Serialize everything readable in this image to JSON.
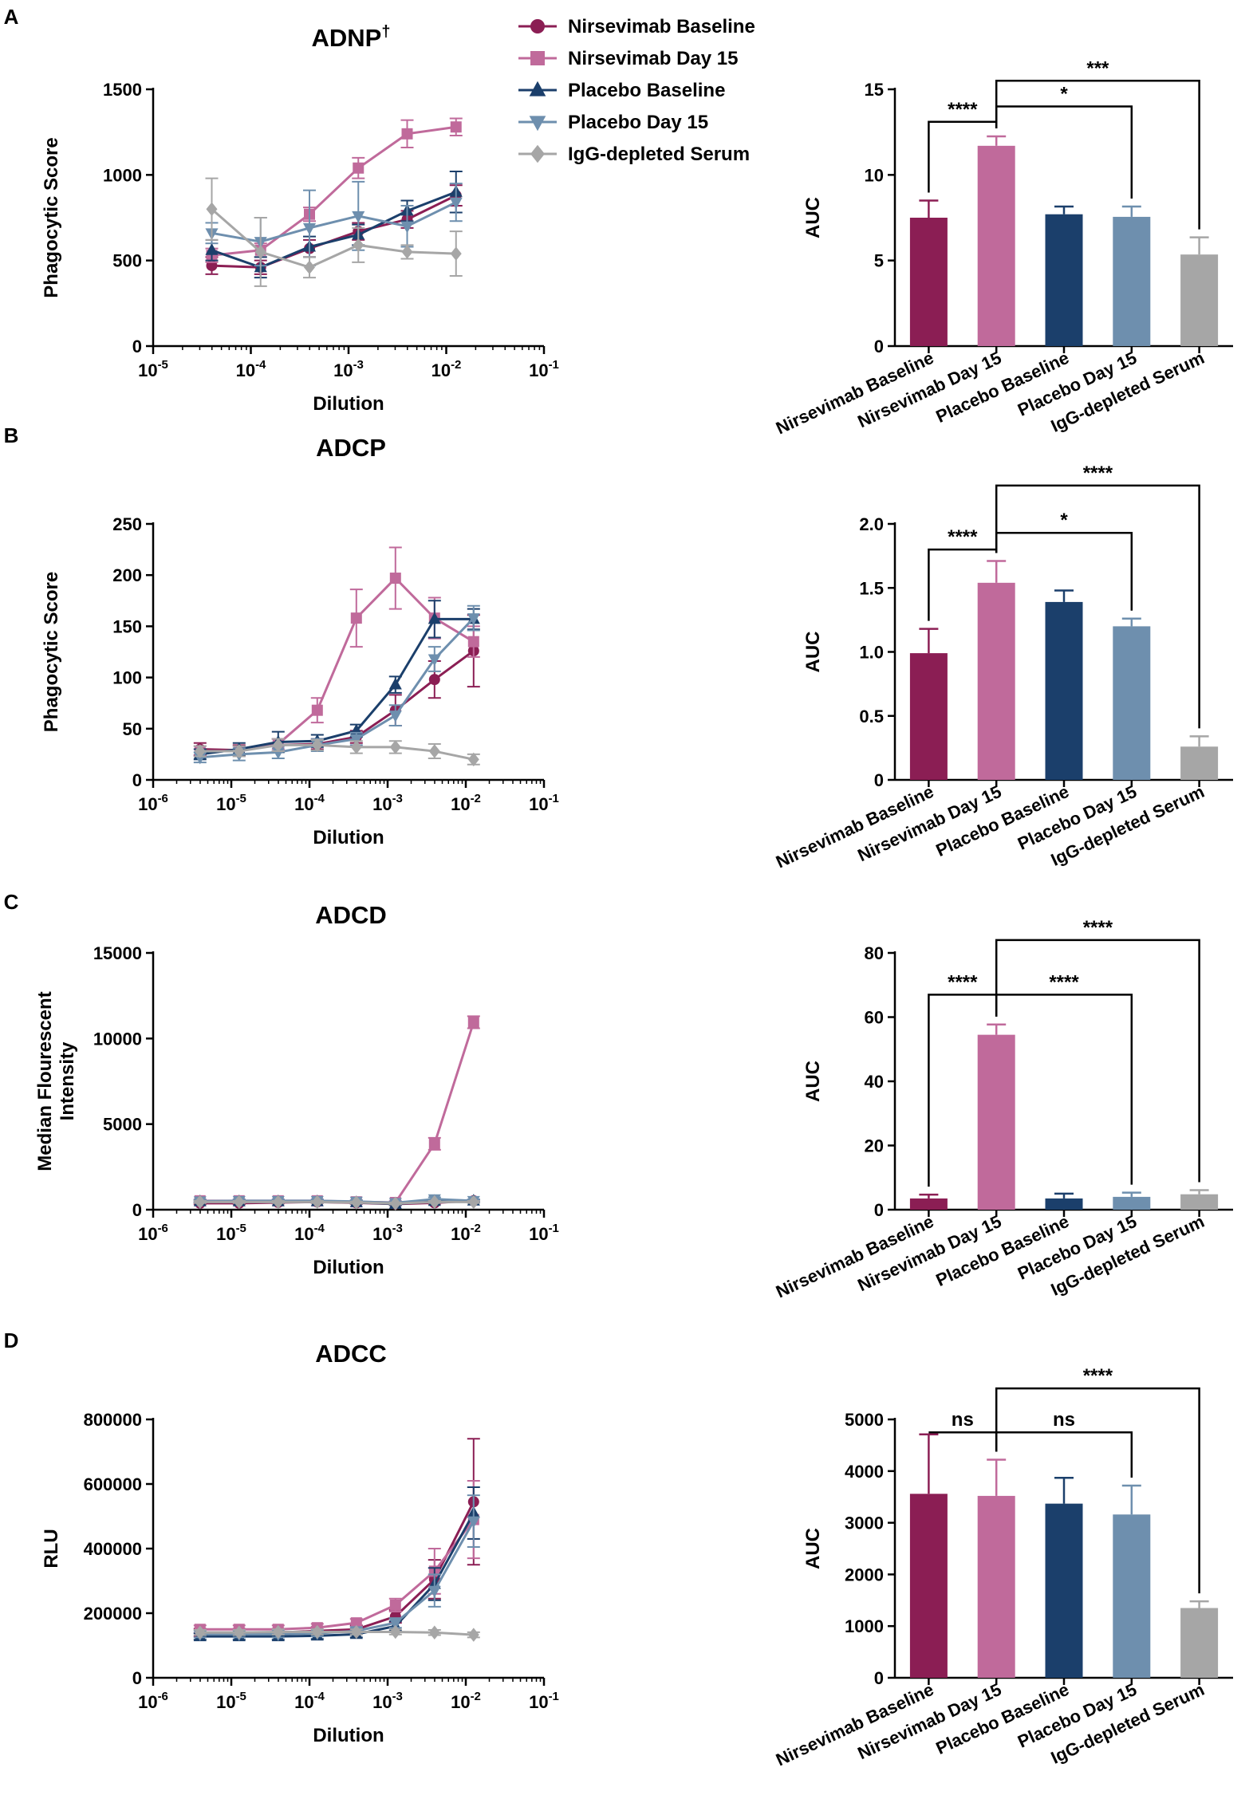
{
  "legend": [
    {
      "label": "Nirsevimab Baseline",
      "color": "#8B1E54",
      "marker": "circle"
    },
    {
      "label": "Nirsevimab Day 15",
      "color": "#C06A9B",
      "marker": "square"
    },
    {
      "label": "Placebo Baseline",
      "color": "#1B3F6B",
      "marker": "triangle-up"
    },
    {
      "label": "Placebo Day 15",
      "color": "#6E8FAE",
      "marker": "triangle-down"
    },
    {
      "label": "IgG-depleted Serum",
      "color": "#A6A6A6",
      "marker": "diamond"
    }
  ],
  "chart_data": [
    {
      "type": "line",
      "panel": "A",
      "title": "ADNP",
      "title_sup": "†",
      "xlabel": "Dilution",
      "ylabel": "Phagocytic Score",
      "xscale": "log",
      "xlim_exp": [
        -5,
        -1
      ],
      "xtick_exps": [
        -5,
        -4,
        -3,
        -2,
        -1
      ],
      "ylim": [
        0,
        1500
      ],
      "yticks": [
        "0",
        "500",
        "1000",
        "1500"
      ],
      "ytick_values": [
        0,
        500,
        1000,
        1500
      ],
      "x_exp": [
        -4.4,
        -3.9,
        -3.4,
        -2.9,
        -2.4,
        -1.9
      ],
      "series": [
        {
          "name": "Nirsevimab Baseline",
          "values": [
            470,
            460,
            570,
            670,
            740,
            880
          ],
          "errors": [
            50,
            40,
            50,
            50,
            50,
            60
          ]
        },
        {
          "name": "Nirsevimab Day 15",
          "values": [
            530,
            560,
            770,
            1040,
            1240,
            1280
          ],
          "errors": [
            40,
            40,
            40,
            60,
            80,
            50
          ]
        },
        {
          "name": "Placebo Baseline",
          "values": [
            560,
            460,
            580,
            650,
            790,
            900
          ],
          "errors": [
            60,
            60,
            60,
            60,
            60,
            120
          ]
        },
        {
          "name": "Placebo Day 15",
          "values": [
            660,
            610,
            690,
            760,
            700,
            840
          ],
          "errors": [
            60,
            140,
            220,
            200,
            120,
            110
          ]
        },
        {
          "name": "IgG-depleted Serum",
          "values": [
            800,
            550,
            460,
            590,
            550,
            540
          ],
          "errors": [
            180,
            200,
            60,
            100,
            40,
            130
          ]
        }
      ]
    },
    {
      "type": "bar",
      "panel": "A",
      "ylabel": "AUC",
      "categories": [
        "Nirsevimab Baseline",
        "Nirsevimab Day 15",
        "Placebo Baseline",
        "Placebo Day 15",
        "IgG-depleted Serum"
      ],
      "values": [
        7.5,
        11.7,
        7.7,
        7.55,
        5.35
      ],
      "errors": [
        1.0,
        0.55,
        0.45,
        0.6,
        1.0
      ],
      "ylim": [
        0,
        15
      ],
      "yticks": [
        "0",
        "5",
        "10",
        "15"
      ],
      "ytick_values": [
        0,
        5,
        10,
        15
      ],
      "significance": [
        {
          "from": 0,
          "to": 1,
          "label": "****",
          "level": 13.1
        },
        {
          "from": 1,
          "to": 3,
          "label": "*",
          "level": 14.0
        },
        {
          "from": 1,
          "to": 4,
          "label": "***",
          "level": 15.5
        }
      ]
    },
    {
      "type": "line",
      "panel": "B",
      "title": "ADCP",
      "xlabel": "Dilution",
      "ylabel": "Phagocytic Score",
      "xscale": "log",
      "xlim_exp": [
        -6,
        -1
      ],
      "xtick_exps": [
        -6,
        -5,
        -4,
        -3,
        -2,
        -1
      ],
      "ylim": [
        0,
        250
      ],
      "yticks": [
        "0",
        "50",
        "100",
        "150",
        "200",
        "250"
      ],
      "ytick_values": [
        0,
        50,
        100,
        150,
        200,
        250
      ],
      "x_exp": [
        -5.4,
        -4.9,
        -4.4,
        -3.9,
        -3.4,
        -2.9,
        -2.4,
        -1.9
      ],
      "series": [
        {
          "name": "Nirsevimab Baseline",
          "values": [
            30,
            29,
            34,
            35,
            42,
            68,
            98,
            126
          ],
          "errors": [
            6,
            5,
            6,
            5,
            6,
            15,
            18,
            35
          ]
        },
        {
          "name": "Nirsevimab Day 15",
          "values": [
            28,
            28,
            35,
            68,
            158,
            197,
            158,
            135
          ],
          "errors": [
            5,
            5,
            5,
            12,
            28,
            30,
            20,
            15
          ]
        },
        {
          "name": "Placebo Baseline",
          "values": [
            25,
            30,
            37,
            38,
            48,
            93,
            157,
            157
          ],
          "errors": [
            5,
            6,
            10,
            6,
            6,
            8,
            18,
            10
          ]
        },
        {
          "name": "Placebo Day 15",
          "values": [
            22,
            25,
            27,
            34,
            40,
            63,
            118,
            158
          ],
          "errors": [
            5,
            6,
            6,
            6,
            6,
            10,
            12,
            12
          ]
        },
        {
          "name": "IgG-depleted Serum",
          "values": [
            28,
            28,
            34,
            34,
            32,
            32,
            28,
            20
          ],
          "errors": [
            5,
            5,
            6,
            5,
            6,
            6,
            7,
            5
          ]
        }
      ]
    },
    {
      "type": "bar",
      "panel": "B",
      "ylabel": "AUC",
      "categories": [
        "Nirsevimab Baseline",
        "Nirsevimab Day 15",
        "Placebo Baseline",
        "Placebo Day 15",
        "IgG-depleted Serum"
      ],
      "values": [
        0.99,
        1.54,
        1.39,
        1.2,
        0.26
      ],
      "errors": [
        0.19,
        0.17,
        0.09,
        0.06,
        0.08
      ],
      "ylim": [
        0,
        2.0
      ],
      "yticks": [
        "0",
        "0.5",
        "1.0",
        "1.5",
        "2.0"
      ],
      "ytick_values": [
        0,
        0.5,
        1.0,
        1.5,
        2.0
      ],
      "significance": [
        {
          "from": 0,
          "to": 1,
          "label": "****",
          "level": 1.8
        },
        {
          "from": 1,
          "to": 3,
          "label": "*",
          "level": 1.93
        },
        {
          "from": 1,
          "to": 4,
          "label": "****",
          "level": 2.3
        }
      ]
    },
    {
      "type": "line",
      "panel": "C",
      "title": "ADCD",
      "xlabel": "Dilution",
      "ylabel_lines": [
        "Median Flourescent",
        "Intensity"
      ],
      "xscale": "log",
      "xlim_exp": [
        -6,
        -1
      ],
      "xtick_exps": [
        -6,
        -5,
        -4,
        -3,
        -2,
        -1
      ],
      "ylim": [
        0,
        15000
      ],
      "yticks": [
        "0",
        "5000",
        "10000",
        "15000"
      ],
      "ytick_values": [
        0,
        5000,
        10000,
        15000
      ],
      "x_exp": [
        -5.4,
        -4.9,
        -4.4,
        -3.9,
        -3.4,
        -2.9,
        -2.4,
        -1.9
      ],
      "series": [
        {
          "name": "Nirsevimab Baseline",
          "values": [
            380,
            380,
            420,
            450,
            400,
            330,
            400,
            520
          ],
          "errors": [
            60,
            60,
            60,
            60,
            60,
            60,
            60,
            60
          ]
        },
        {
          "name": "Nirsevimab Day 15",
          "values": [
            520,
            520,
            520,
            520,
            460,
            420,
            3850,
            10950
          ],
          "errors": [
            80,
            80,
            80,
            80,
            80,
            80,
            350,
            350
          ]
        },
        {
          "name": "Placebo Baseline",
          "values": [
            480,
            480,
            480,
            480,
            430,
            330,
            500,
            520
          ],
          "errors": [
            70,
            70,
            70,
            70,
            70,
            70,
            70,
            70
          ]
        },
        {
          "name": "Placebo Day 15",
          "values": [
            500,
            520,
            520,
            520,
            480,
            400,
            620,
            520
          ],
          "errors": [
            80,
            80,
            80,
            80,
            80,
            80,
            100,
            80
          ]
        },
        {
          "name": "IgG-depleted Serum",
          "values": [
            450,
            450,
            450,
            450,
            420,
            360,
            450,
            450
          ],
          "errors": [
            60,
            60,
            60,
            60,
            60,
            60,
            60,
            60
          ]
        }
      ]
    },
    {
      "type": "bar",
      "panel": "C",
      "ylabel": "AUC",
      "categories": [
        "Nirsevimab Baseline",
        "Nirsevimab Day 15",
        "Placebo Baseline",
        "Placebo Day 15",
        "IgG-depleted Serum"
      ],
      "values": [
        3.5,
        54.5,
        3.5,
        4.0,
        4.8
      ],
      "errors": [
        1.2,
        3.2,
        1.5,
        1.3,
        1.3
      ],
      "ylim": [
        0,
        80
      ],
      "yticks": [
        "0",
        "20",
        "40",
        "60",
        "80"
      ],
      "ytick_values": [
        0,
        20,
        40,
        60,
        80
      ],
      "significance": [
        {
          "from": 0,
          "to": 1,
          "label": "****",
          "level": 67
        },
        {
          "from": 1,
          "to": 3,
          "label": "****",
          "level": 67
        },
        {
          "from": 1,
          "to": 4,
          "label": "****",
          "level": 84
        }
      ]
    },
    {
      "type": "line",
      "panel": "D",
      "title": "ADCC",
      "xlabel": "Dilution",
      "ylabel": "RLU",
      "xscale": "log",
      "xlim_exp": [
        -6,
        -1
      ],
      "xtick_exps": [
        -6,
        -5,
        -4,
        -3,
        -2,
        -1
      ],
      "ylim": [
        0,
        800000
      ],
      "yticks": [
        "0",
        "200000",
        "400000",
        "600000",
        "800000"
      ],
      "ytick_values": [
        0,
        200000,
        400000,
        600000,
        800000
      ],
      "x_exp": [
        -5.4,
        -4.9,
        -4.4,
        -3.9,
        -3.4,
        -2.9,
        -2.4,
        -1.9
      ],
      "series": [
        {
          "name": "Nirsevimab Baseline",
          "values": [
            140000,
            140000,
            140000,
            145000,
            150000,
            190000,
            305000,
            545000
          ],
          "errors": [
            12000,
            12000,
            12000,
            12000,
            12000,
            20000,
            60000,
            195000
          ]
        },
        {
          "name": "Nirsevimab Day 15",
          "values": [
            150000,
            150000,
            150000,
            155000,
            170000,
            225000,
            330000,
            490000
          ],
          "errors": [
            12000,
            12000,
            12000,
            12000,
            12000,
            20000,
            70000,
            120000
          ]
        },
        {
          "name": "Placebo Baseline",
          "values": [
            128000,
            128000,
            128000,
            130000,
            135000,
            160000,
            290000,
            510000
          ],
          "errors": [
            10000,
            10000,
            10000,
            10000,
            10000,
            15000,
            50000,
            80000
          ]
        },
        {
          "name": "Placebo Day 15",
          "values": [
            135000,
            135000,
            135000,
            138000,
            145000,
            170000,
            270000,
            485000
          ],
          "errors": [
            10000,
            10000,
            10000,
            10000,
            10000,
            15000,
            50000,
            80000
          ]
        },
        {
          "name": "IgG-depleted Serum",
          "values": [
            140000,
            140000,
            142000,
            142000,
            142000,
            142000,
            140000,
            133000
          ],
          "errors": [
            8000,
            8000,
            8000,
            8000,
            8000,
            8000,
            8000,
            8000
          ]
        }
      ]
    },
    {
      "type": "bar",
      "panel": "D",
      "ylabel": "AUC",
      "categories": [
        "Nirsevimab Baseline",
        "Nirsevimab Day 15",
        "Placebo Baseline",
        "Placebo Day 15",
        "IgG-depleted Serum"
      ],
      "values": [
        3560,
        3520,
        3370,
        3160,
        1350
      ],
      "errors": [
        1150,
        700,
        500,
        560,
        130
      ],
      "ylim": [
        0,
        5000
      ],
      "yticks": [
        "0",
        "1000",
        "2000",
        "3000",
        "4000",
        "5000"
      ],
      "ytick_values": [
        0,
        1000,
        2000,
        3000,
        4000,
        5000
      ],
      "significance": [
        {
          "from": 0,
          "to": 1,
          "label": "ns",
          "level": 4750
        },
        {
          "from": 1,
          "to": 3,
          "label": "ns",
          "level": 4750
        },
        {
          "from": 1,
          "to": 4,
          "label": "****",
          "level": 5600
        }
      ]
    }
  ]
}
